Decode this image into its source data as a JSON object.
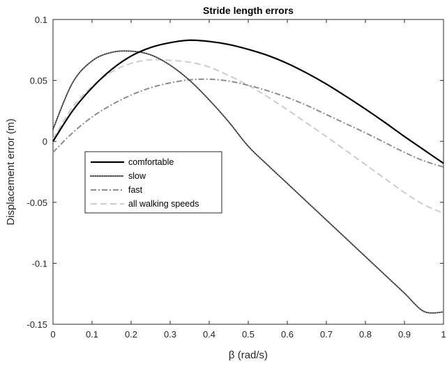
{
  "chart_data": {
    "type": "line",
    "title": "Stride length errors",
    "xlabel": "β (rad/s)",
    "ylabel": "Displacement error (m)",
    "xlim": [
      0,
      1
    ],
    "ylim": [
      -0.15,
      0.1
    ],
    "x_ticks": [
      "0",
      "0.1",
      "0.2",
      "0.3",
      "0.4",
      "0.5",
      "0.6",
      "0.7",
      "0.8",
      "0.9",
      "1"
    ],
    "y_ticks": [
      "0.1",
      "0.05",
      "0",
      "-0.05",
      "-0.1",
      "-0.15"
    ],
    "grid": false,
    "legend_position": "center-left",
    "x": [
      0,
      0.05,
      0.1,
      0.15,
      0.2,
      0.25,
      0.3,
      0.35,
      0.4,
      0.45,
      0.5,
      0.55,
      0.6,
      0.65,
      0.7,
      0.75,
      0.8,
      0.85,
      0.9,
      0.95,
      1
    ],
    "series": [
      {
        "name": "comfortable",
        "color": "#000000",
        "dash": "solid",
        "values": [
          0.0,
          0.025,
          0.044,
          0.059,
          0.07,
          0.077,
          0.081,
          0.083,
          0.082,
          0.0795,
          0.0755,
          0.0705,
          0.064,
          0.056,
          0.047,
          0.037,
          0.0265,
          0.0155,
          0.004,
          -0.007,
          -0.018
        ]
      },
      {
        "name": "slow",
        "color": "#444444",
        "dash": "dotted",
        "values": [
          0.01,
          0.048,
          0.066,
          0.073,
          0.074,
          0.071,
          0.0625,
          0.05,
          0.034,
          0.016,
          -0.004,
          -0.0195,
          -0.0345,
          -0.0495,
          -0.0645,
          -0.0795,
          -0.0945,
          -0.1095,
          -0.1245,
          -0.1395,
          -0.14
        ]
      },
      {
        "name": "fast",
        "color": "#8c8c8c",
        "dash": "dashdot",
        "values": [
          -0.009,
          0.007,
          0.02,
          0.03,
          0.038,
          0.044,
          0.048,
          0.0505,
          0.051,
          0.0495,
          0.046,
          0.0415,
          0.036,
          0.0295,
          0.022,
          0.0145,
          0.007,
          -0.001,
          -0.009,
          -0.016,
          -0.021
        ]
      },
      {
        "name": "all walking speeds",
        "color": "#cccccc",
        "dash": "dashed",
        "values": [
          0.002,
          0.028,
          0.045,
          0.057,
          0.064,
          0.067,
          0.0665,
          0.065,
          0.061,
          0.054,
          0.046,
          0.0365,
          0.026,
          0.015,
          0.004,
          -0.0075,
          -0.019,
          -0.0305,
          -0.042,
          -0.052,
          -0.059
        ]
      }
    ]
  }
}
